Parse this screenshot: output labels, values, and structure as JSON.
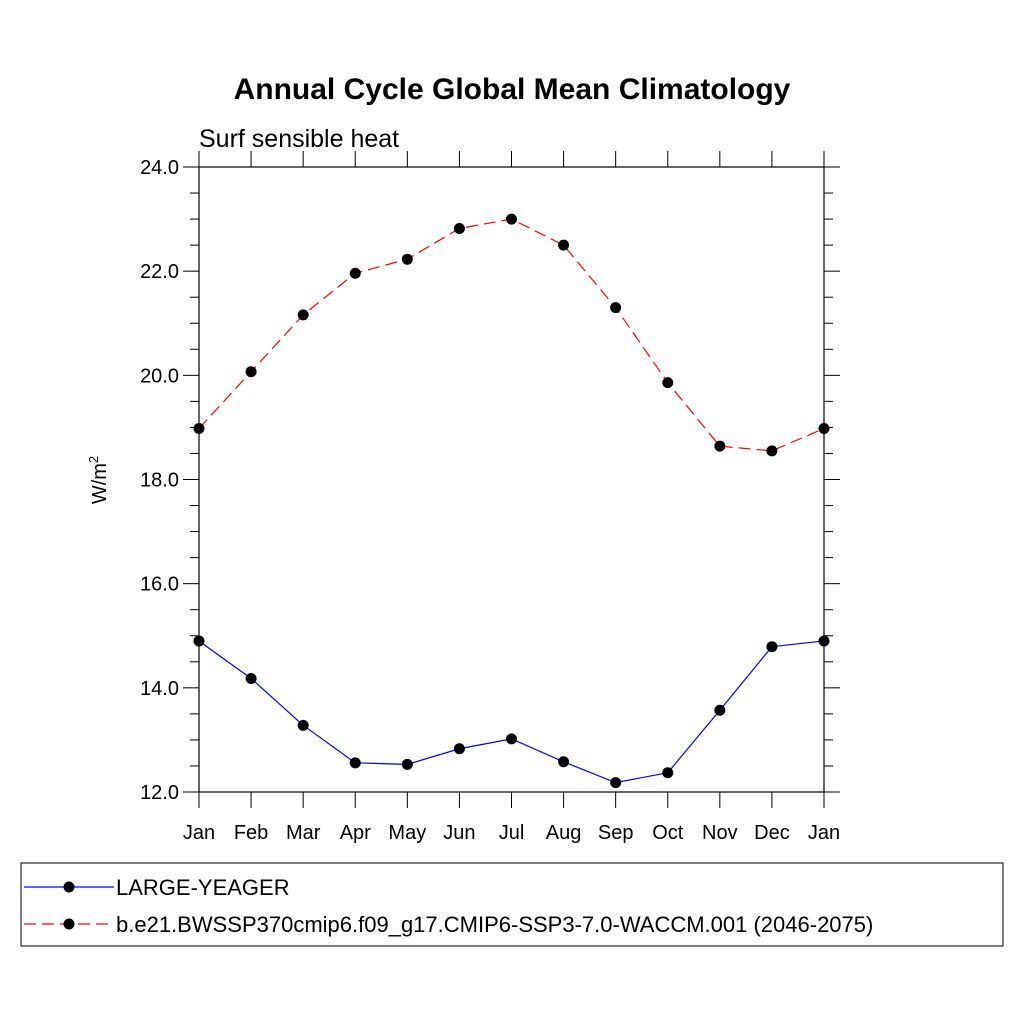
{
  "chart_data": {
    "type": "line",
    "title": "Annual Cycle Global Mean Climatology",
    "subtitle": "Surf sensible heat",
    "xlabel": "",
    "ylabel": "W/m",
    "ylabel_superscript": "2",
    "categories": [
      "Jan",
      "Feb",
      "Mar",
      "Apr",
      "May",
      "Jun",
      "Jul",
      "Aug",
      "Sep",
      "Oct",
      "Nov",
      "Dec",
      "Jan"
    ],
    "ylim": [
      12.0,
      24.0
    ],
    "yticks": [
      "12.0",
      "14.0",
      "16.0",
      "18.0",
      "20.0",
      "22.0",
      "24.0"
    ],
    "grid": false,
    "legend_position": "bottom",
    "series": [
      {
        "name": "LARGE-YEAGER",
        "color": "#0000ff",
        "dash": "solid",
        "values": [
          14.9,
          14.18,
          13.28,
          12.56,
          12.53,
          12.83,
          13.02,
          12.58,
          12.18,
          12.37,
          13.57,
          14.79,
          14.9
        ]
      },
      {
        "name": "b.e21.BWSSP370cmip6.f09_g17.CMIP6-SSP3-7.0-WACCM.001 (2046-2075)",
        "color": "#ff0000",
        "dash": "dashed",
        "values": [
          18.98,
          20.07,
          21.16,
          21.96,
          22.23,
          22.82,
          23.0,
          22.5,
          21.3,
          19.86,
          18.64,
          18.55,
          18.98
        ]
      }
    ]
  }
}
